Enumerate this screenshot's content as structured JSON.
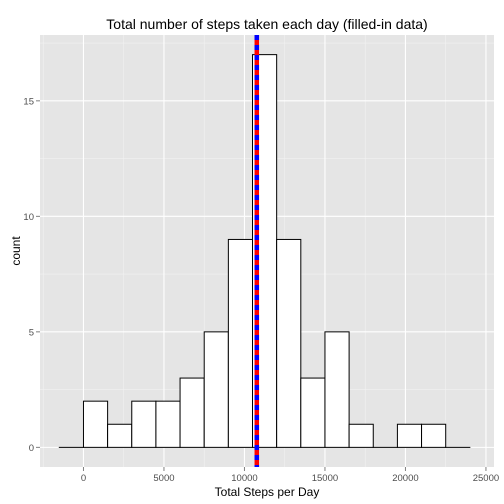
{
  "chart_data": {
    "type": "bar",
    "title": "Total number of steps taken each day (filled-in data)",
    "xlabel": "Total Steps per Day",
    "ylabel": "count",
    "xlim": [
      -2700,
      25500
    ],
    "ylim": [
      -0.85,
      17.85
    ],
    "x_ticks": [
      0,
      5000,
      10000,
      15000,
      20000,
      25000
    ],
    "x_tick_labels": [
      "0",
      "5000",
      "10000",
      "15000",
      "20000",
      "25000"
    ],
    "y_ticks": [
      0,
      5,
      10,
      15
    ],
    "y_tick_labels": [
      "0",
      "5",
      "10",
      "15"
    ],
    "bin_width": 1500,
    "bins": [
      {
        "start": -1500,
        "end": 0,
        "count": 0
      },
      {
        "start": 0,
        "end": 1500,
        "count": 2
      },
      {
        "start": 1500,
        "end": 3000,
        "count": 1
      },
      {
        "start": 3000,
        "end": 4500,
        "count": 2
      },
      {
        "start": 4500,
        "end": 6000,
        "count": 2
      },
      {
        "start": 6000,
        "end": 7500,
        "count": 3
      },
      {
        "start": 7500,
        "end": 9000,
        "count": 5
      },
      {
        "start": 9000,
        "end": 10500,
        "count": 9
      },
      {
        "start": 10500,
        "end": 12000,
        "count": 17
      },
      {
        "start": 12000,
        "end": 13500,
        "count": 9
      },
      {
        "start": 13500,
        "end": 15000,
        "count": 3
      },
      {
        "start": 15000,
        "end": 16500,
        "count": 5
      },
      {
        "start": 16500,
        "end": 18000,
        "count": 1
      },
      {
        "start": 18000,
        "end": 19500,
        "count": 0
      },
      {
        "start": 19500,
        "end": 21000,
        "count": 1
      },
      {
        "start": 21000,
        "end": 22500,
        "count": 1
      },
      {
        "start": 22500,
        "end": 24000,
        "count": 0
      }
    ],
    "reference_lines": [
      {
        "x": 10766,
        "color": "#ff0000",
        "style": "solid"
      },
      {
        "x": 10766,
        "color": "#0000ff",
        "style": "dashed"
      }
    ],
    "grid": true,
    "colors": {
      "panel_background": "#e5e5e5",
      "grid_major": "#ffffff",
      "grid_minor": "#f2f2f2",
      "bar_fill": "#ffffff",
      "bar_outline": "#000000"
    }
  }
}
